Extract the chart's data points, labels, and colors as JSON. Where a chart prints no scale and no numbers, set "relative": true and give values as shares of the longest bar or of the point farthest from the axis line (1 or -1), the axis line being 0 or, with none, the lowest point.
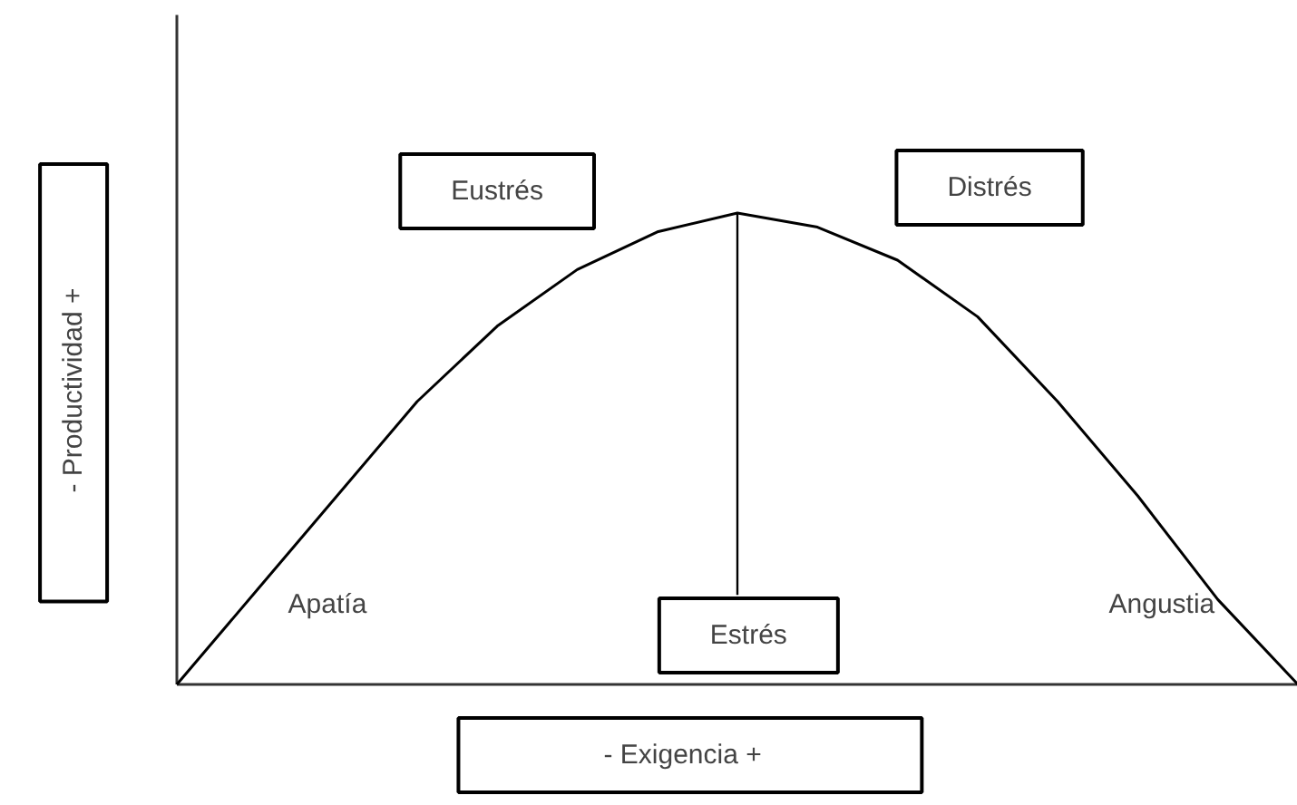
{
  "chart_data": {
    "type": "line",
    "relative": true,
    "xlabel": "-  Exigencia  +",
    "ylabel": "-  Productividad  +",
    "categories": [
      null,
      null,
      null,
      null,
      null,
      null,
      null,
      null,
      null,
      null,
      null,
      null,
      null,
      null,
      null
    ],
    "series": [
      {
        "color": "#000000",
        "values": [
          0,
          0.2,
          0.4,
          0.6,
          0.76,
          0.88,
          0.96,
          1.0,
          0.97,
          0.9,
          0.78,
          0.6,
          0.4,
          0.18,
          0
        ]
      }
    ],
    "annotations": [
      "Eustrés",
      "Distrés",
      "Apatía",
      "Angustia",
      "Estrés"
    ],
    "grid": false,
    "marker": "none",
    "line_style": "solid"
  }
}
